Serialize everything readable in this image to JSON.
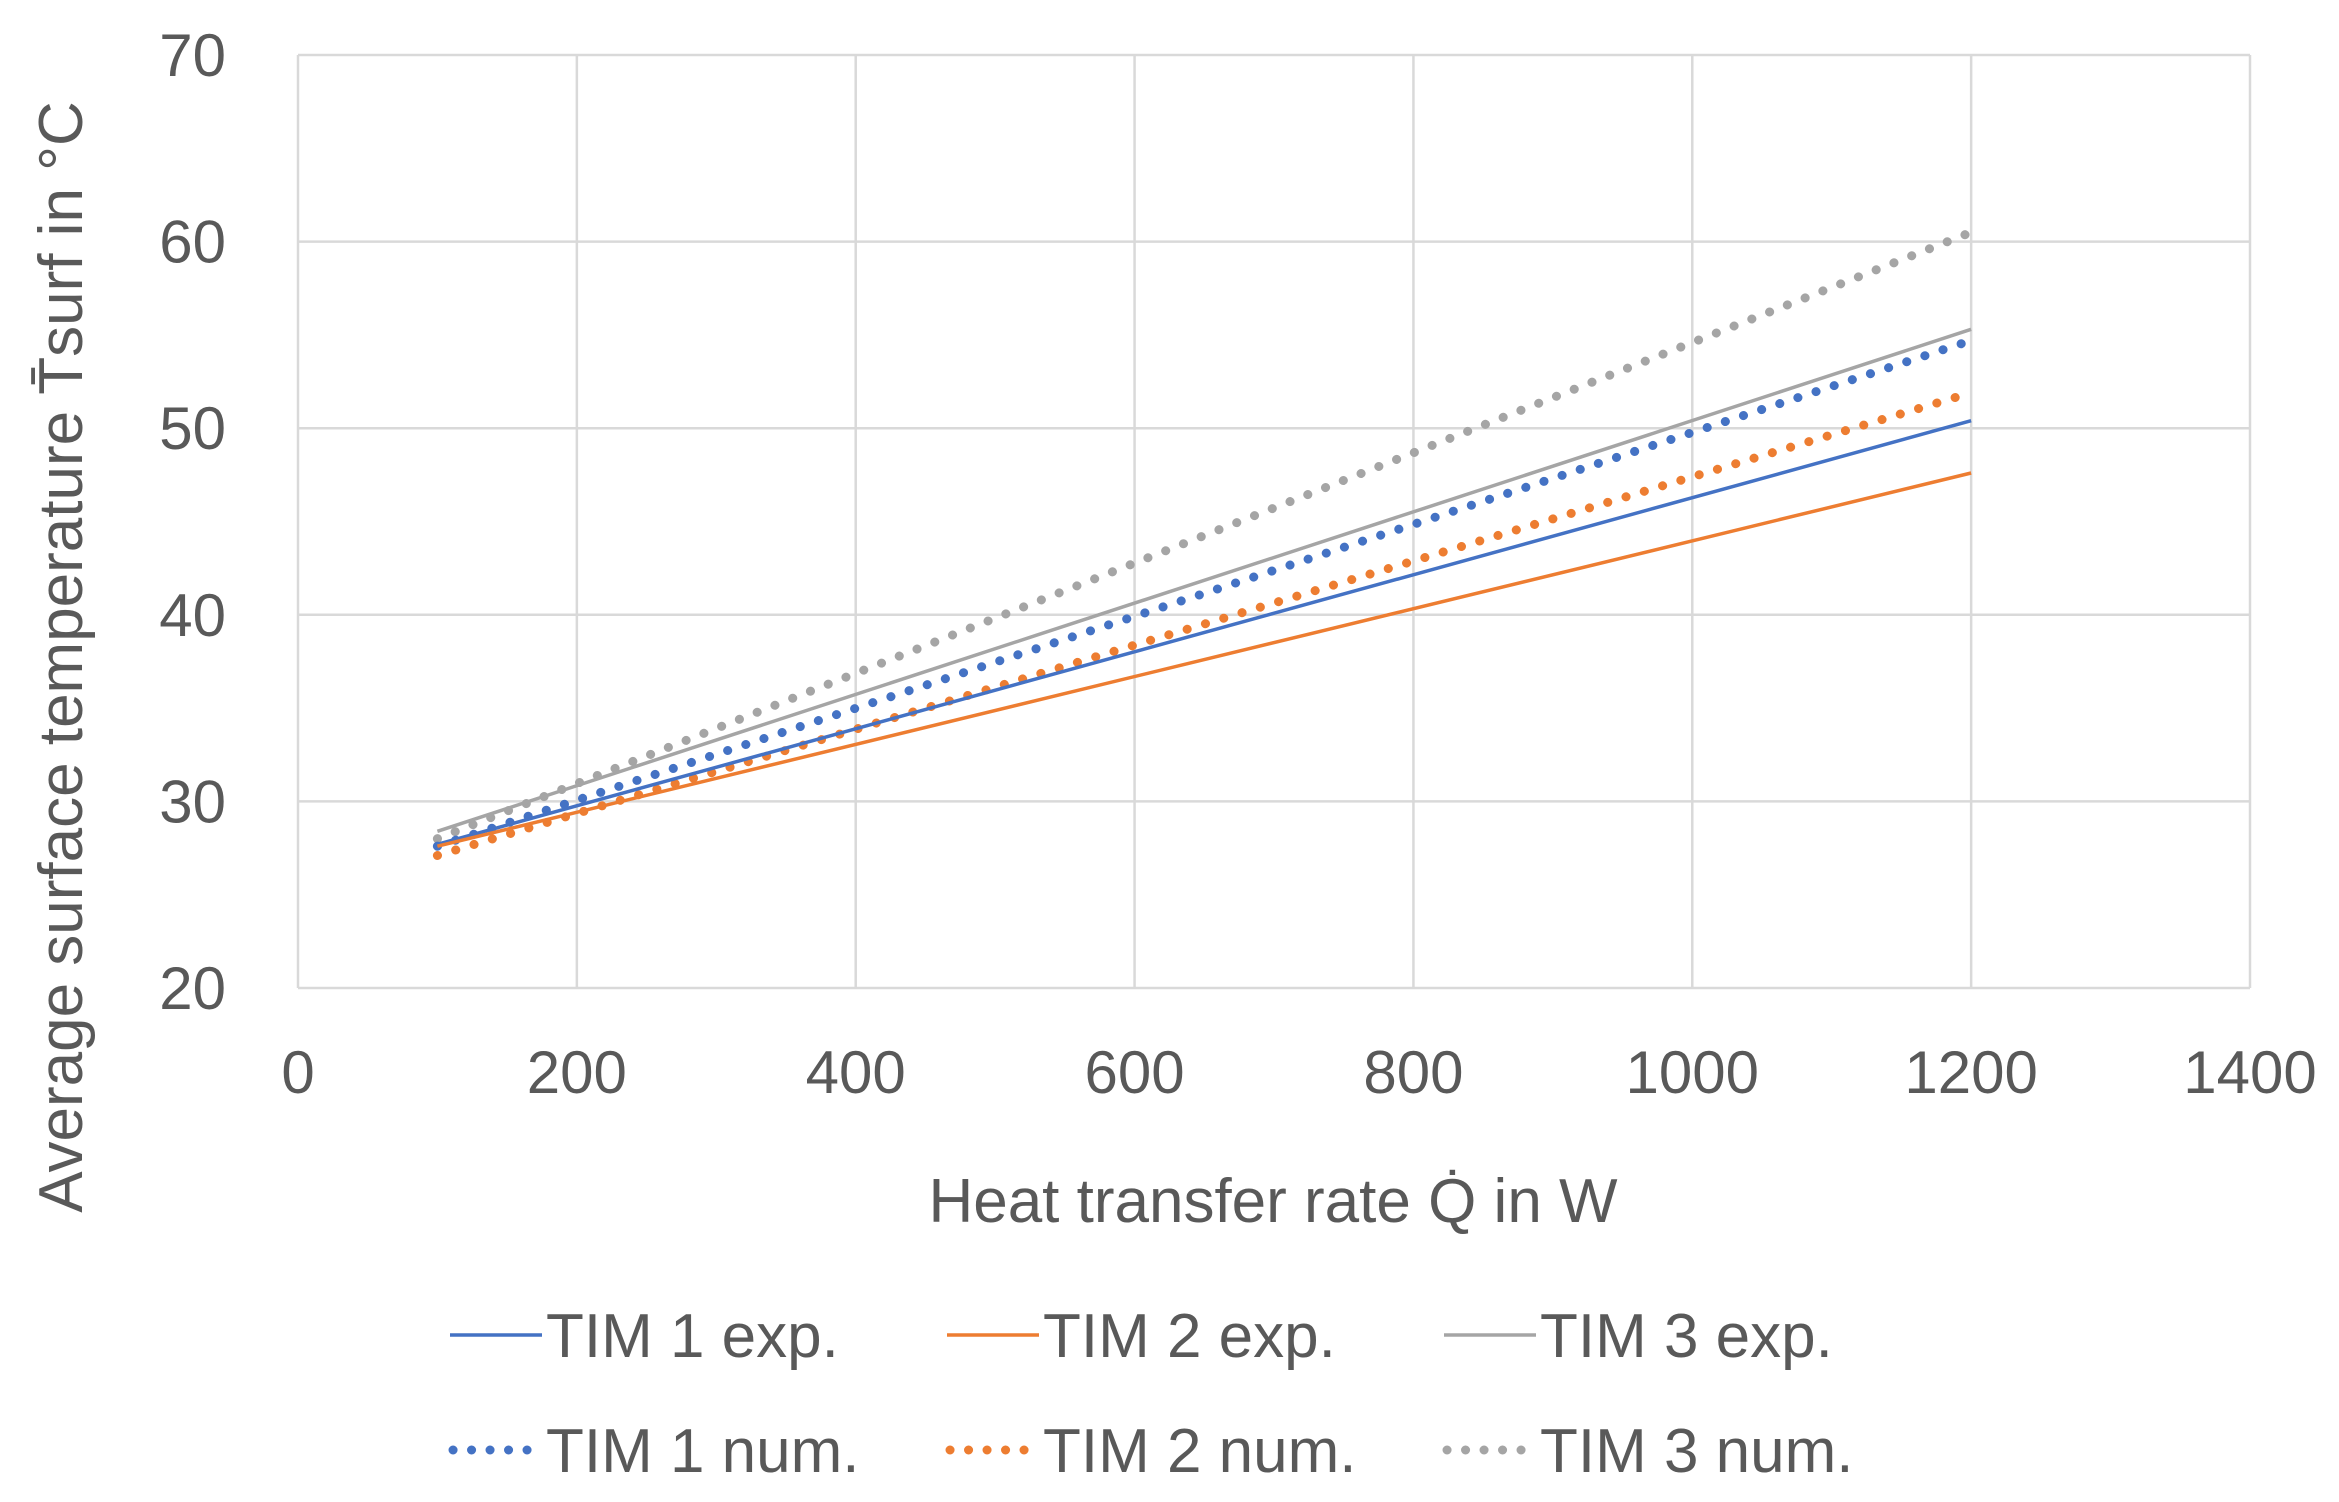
{
  "chart_data": {
    "type": "line",
    "title": "",
    "xlabel": "Heat transfer rate Q̇ in W",
    "ylabel": "Average surface temperature T̄surf in °C",
    "xlim": [
      0,
      1400
    ],
    "ylim": [
      20,
      70
    ],
    "xticks": [
      0,
      200,
      400,
      600,
      800,
      1000,
      1200,
      1400
    ],
    "yticks": [
      20,
      30,
      40,
      50,
      60,
      70
    ],
    "xtick_labels": [
      "0",
      "200",
      "400",
      "600",
      "800",
      "1000",
      "1200",
      "1400"
    ],
    "ytick_labels": [
      "20",
      "30",
      "40",
      "50",
      "60",
      "70"
    ],
    "grid": true,
    "legend_position": "bottom",
    "series": [
      {
        "name": "TIM 1 exp.",
        "style": "solid",
        "color": "#4472C4",
        "x": [
          100,
          1200
        ],
        "y": [
          27.7,
          50.4
        ]
      },
      {
        "name": "TIM 2 exp.",
        "style": "solid",
        "color": "#ED7D31",
        "x": [
          100,
          1200
        ],
        "y": [
          27.6,
          47.6
        ]
      },
      {
        "name": "TIM 3 exp.",
        "style": "solid",
        "color": "#A5A5A5",
        "x": [
          100,
          1200
        ],
        "y": [
          28.4,
          55.3
        ]
      },
      {
        "name": "TIM 1 num.",
        "style": "dotted",
        "color": "#4472C4",
        "x": [
          100,
          1200
        ],
        "y": [
          27.6,
          54.7
        ]
      },
      {
        "name": "TIM 2 num.",
        "style": "dotted",
        "color": "#ED7D31",
        "x": [
          100,
          1200
        ],
        "y": [
          27.1,
          51.9
        ]
      },
      {
        "name": "TIM 3 num.",
        "style": "dotted",
        "color": "#A5A5A5",
        "x": [
          100,
          1200
        ],
        "y": [
          28.0,
          60.5
        ]
      }
    ]
  }
}
